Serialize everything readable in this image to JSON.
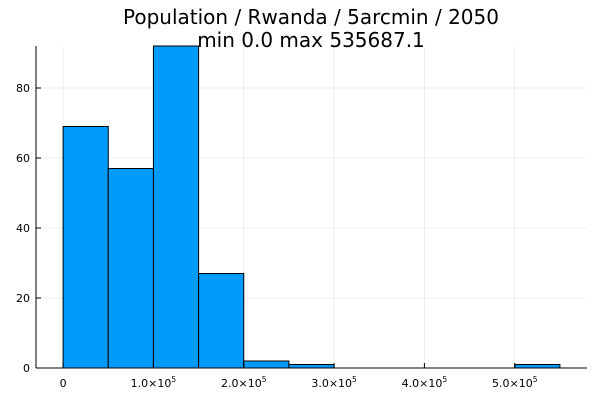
{
  "chart_data": {
    "type": "bar",
    "title": "Population / Rwanda / 5arcmin / 2050",
    "subtitle": "min 0.0  max 535687.1",
    "xlabel": "",
    "ylabel": "",
    "bin_width": 50000,
    "bins": [
      {
        "start": 0,
        "end": 50000,
        "count": 69
      },
      {
        "start": 50000,
        "end": 100000,
        "count": 57
      },
      {
        "start": 100000,
        "end": 150000,
        "count": 92
      },
      {
        "start": 150000,
        "end": 200000,
        "count": 27
      },
      {
        "start": 200000,
        "end": 250000,
        "count": 2
      },
      {
        "start": 250000,
        "end": 300000,
        "count": 1
      },
      {
        "start": 300000,
        "end": 350000,
        "count": 0
      },
      {
        "start": 350000,
        "end": 400000,
        "count": 0
      },
      {
        "start": 400000,
        "end": 450000,
        "count": 0
      },
      {
        "start": 450000,
        "end": 500000,
        "count": 0
      },
      {
        "start": 500000,
        "end": 550000,
        "count": 1
      }
    ],
    "xlim": [
      -30000,
      580000
    ],
    "ylim": [
      0,
      92
    ],
    "x_ticks": [
      {
        "value": 0,
        "label": "0",
        "exp": ""
      },
      {
        "value": 100000,
        "label": "1.0×10",
        "exp": "5"
      },
      {
        "value": 200000,
        "label": "2.0×10",
        "exp": "5"
      },
      {
        "value": 300000,
        "label": "3.0×10",
        "exp": "5"
      },
      {
        "value": 400000,
        "label": "4.0×10",
        "exp": "5"
      },
      {
        "value": 500000,
        "label": "5.0×10",
        "exp": "5"
      }
    ],
    "y_ticks": [
      {
        "value": 0,
        "label": "0"
      },
      {
        "value": 20,
        "label": "20"
      },
      {
        "value": 40,
        "label": "40"
      },
      {
        "value": 60,
        "label": "60"
      },
      {
        "value": 80,
        "label": "80"
      }
    ],
    "grid": true,
    "legend": "none",
    "colors": {
      "bar": "#009af9",
      "edge": "#000000"
    }
  }
}
